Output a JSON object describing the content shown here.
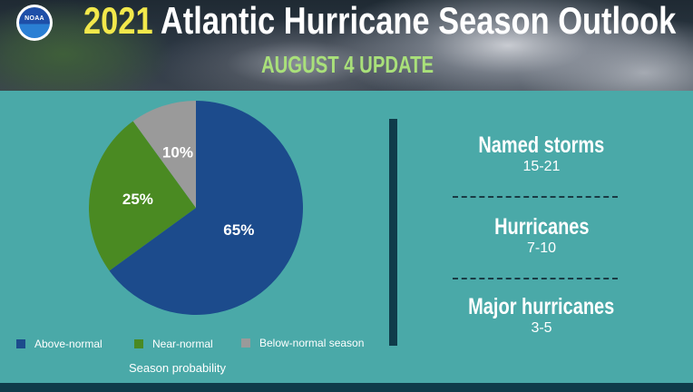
{
  "header": {
    "logo_text": "NOAA",
    "title_year": "2021",
    "title_rest": " Atlantic Hurricane Season Outlook",
    "subtitle": "AUGUST 4 UPDATE"
  },
  "chart_data": {
    "type": "pie",
    "categories": [
      "Above-normal",
      "Near-normal",
      "Below-normal season"
    ],
    "values": [
      65,
      25,
      10
    ],
    "labels": [
      "65%",
      "25%",
      "10%"
    ],
    "colors": [
      "#1c4b8c",
      "#4a8a22",
      "#9a9a9a"
    ],
    "legend_position": "bottom",
    "xlabel": "Season probability"
  },
  "legend": {
    "items": [
      {
        "label": "Above-normal",
        "color": "#1c4b8c"
      },
      {
        "label": "Near-normal",
        "color": "#4a8a22"
      },
      {
        "label": "Below-normal season",
        "color": "#9a9a9a"
      }
    ]
  },
  "caption": "Season probability",
  "stats": [
    {
      "label": "Named storms",
      "value": "15-21"
    },
    {
      "label": "Hurricanes",
      "value": "7-10"
    },
    {
      "label": "Major hurricanes",
      "value": "3-5"
    }
  ],
  "colors": {
    "background": "#4aa9a8",
    "accent_dark": "#0f3c4a",
    "title_year": "#f2e84b",
    "subtitle": "#a9e07a"
  }
}
